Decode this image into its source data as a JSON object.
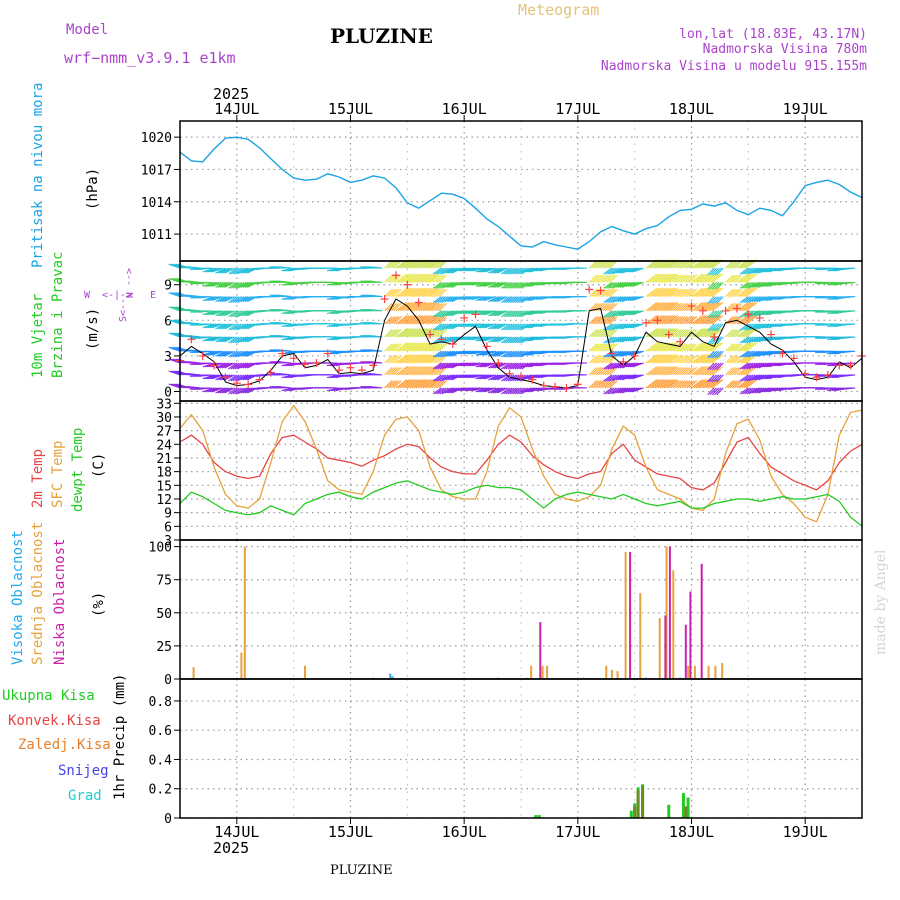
{
  "header": {
    "model_label": "Model",
    "model_name": "wrf−nmm_v3.9.1  e1km",
    "station": "PLUZINE",
    "meteogram": "Meteogram",
    "lonlat": "lon,lat (18.83E, 43.17N)",
    "elevation": "Nadmorska Visina 780m",
    "model_elevation": "Nadmorska Visina u modelu 915.155m",
    "year_top": "2025",
    "footer_station": "PLUZINE",
    "watermark": "made by Angel",
    "year_bottom": "2025"
  },
  "colors": {
    "pressure": "#1aa3e6",
    "temp2m": "#e64444",
    "sfc": "#e6a23c",
    "dewpt": "#22cc22",
    "wind_speed": "#000000",
    "gust": "#ff4040",
    "cloud_high": "#22aaee",
    "cloud_mid": "#e6a23c",
    "cloud_low": "#cc22aa",
    "precip_total": "#22cc22",
    "precip_conv": "#e64444",
    "precip_strat": "#e6822c",
    "snow": "#4444ee",
    "hail": "#22cccc",
    "meteogram_title": "#e6c27a",
    "model_text": "#aa44cc"
  },
  "chart_data": [
    {
      "type": "line",
      "id": "pressure",
      "ylabel": "Pritisak na nivou mora",
      "unit": "(hPa)",
      "yticks": [
        1011,
        1014,
        1017,
        1020
      ],
      "ylim": [
        1008.5,
        1021.5
      ],
      "x_unit": "days from 14JUL 00UTC",
      "x": [
        -0.5,
        -0.4,
        -0.3,
        -0.2,
        -0.1,
        0,
        0.1,
        0.2,
        0.3,
        0.4,
        0.5,
        0.6,
        0.7,
        0.8,
        0.9,
        1,
        1.1,
        1.2,
        1.3,
        1.4,
        1.5,
        1.6,
        1.7,
        1.8,
        1.9,
        2,
        2.1,
        2.2,
        2.3,
        2.4,
        2.5,
        2.6,
        2.7,
        2.8,
        2.9,
        3,
        3.1,
        3.2,
        3.3,
        3.4,
        3.5,
        3.6,
        3.7,
        3.8,
        3.9,
        4,
        4.1,
        4.2,
        4.3,
        4.4,
        4.5,
        4.6,
        4.7,
        4.8,
        4.9,
        5,
        5.1,
        5.2,
        5.3,
        5.4,
        5.5
      ],
      "values": [
        1018.6,
        1017.8,
        1017.7,
        1018.9,
        1019.9,
        1020.0,
        1019.8,
        1019.0,
        1018.0,
        1017.0,
        1016.2,
        1016.0,
        1016.1,
        1016.6,
        1016.3,
        1015.8,
        1016.0,
        1016.4,
        1016.2,
        1015.3,
        1013.9,
        1013.4,
        1014.1,
        1014.8,
        1014.7,
        1014.3,
        1013.4,
        1012.4,
        1011.7,
        1010.8,
        1009.9,
        1009.8,
        1010.3,
        1010.0,
        1009.8,
        1009.6,
        1010.3,
        1011.2,
        1011.7,
        1011.3,
        1011.0,
        1011.5,
        1011.8,
        1012.6,
        1013.2,
        1013.3,
        1013.8,
        1013.6,
        1013.9,
        1013.2,
        1012.8,
        1013.4,
        1013.2,
        1012.7,
        1014.0,
        1015.5,
        1015.8,
        1016.0,
        1015.6,
        1014.9,
        1014.4
      ]
    },
    {
      "type": "line",
      "id": "wind",
      "ylabel": [
        "10m Vjetar",
        "Brzina i Pravac"
      ],
      "unit": "(m/s)",
      "compass": [
        "N",
        "W",
        "E",
        "S"
      ],
      "yticks": [
        0,
        3,
        6,
        9
      ],
      "ylim": [
        -0.8,
        11
      ],
      "x_unit": "days from 14JUL 00UTC",
      "x": [
        -0.5,
        -0.4,
        -0.3,
        -0.2,
        -0.1,
        0,
        0.1,
        0.2,
        0.3,
        0.4,
        0.5,
        0.6,
        0.7,
        0.8,
        0.9,
        1,
        1.1,
        1.2,
        1.3,
        1.4,
        1.5,
        1.6,
        1.7,
        1.8,
        1.9,
        2,
        2.1,
        2.2,
        2.3,
        2.4,
        2.5,
        2.6,
        2.7,
        2.8,
        2.9,
        3,
        3.1,
        3.2,
        3.3,
        3.4,
        3.5,
        3.6,
        3.7,
        3.8,
        3.9,
        4,
        4.1,
        4.2,
        4.3,
        4.4,
        4.5,
        4.6,
        4.7,
        4.8,
        4.9,
        5,
        5.1,
        5.2,
        5.3,
        5.4,
        5.5
      ],
      "speed": [
        3.0,
        3.8,
        3.2,
        2.5,
        0.8,
        0.5,
        0.6,
        0.9,
        1.8,
        3.0,
        3.2,
        2.0,
        2.2,
        2.7,
        1.5,
        1.6,
        1.5,
        1.8,
        6.0,
        7.8,
        7.2,
        6.0,
        4.0,
        4.2,
        4.0,
        4.8,
        5.5,
        3.5,
        2.0,
        1.2,
        1.0,
        0.8,
        0.5,
        0.4,
        0.3,
        0.5,
        6.8,
        7.0,
        3.0,
        2.2,
        3.0,
        5.0,
        4.2,
        4.0,
        3.8,
        5.0,
        4.2,
        3.8,
        5.8,
        6.0,
        5.5,
        5.0,
        4.0,
        3.5,
        2.5,
        1.2,
        1.0,
        1.2,
        2.5,
        2.0,
        2.8
      ],
      "gust": [
        2.6,
        4.4,
        3.0,
        2.2,
        1.2,
        0.7,
        0.6,
        1.0,
        1.6,
        3.2,
        2.8,
        2.3,
        2.4,
        3.2,
        1.8,
        2.0,
        1.8,
        2.2,
        7.8,
        9.8,
        9.0,
        7.5,
        4.8,
        4.4,
        4.0,
        6.2,
        6.5,
        3.8,
        2.4,
        1.5,
        1.3,
        1.0,
        0.5,
        0.4,
        0.3,
        0.6,
        8.6,
        8.5,
        3.2,
        2.5,
        3.0,
        5.8,
        6.0,
        4.8,
        4.2,
        7.2,
        6.8,
        4.6,
        6.8,
        7.0,
        6.5,
        6.2,
        4.8,
        3.2,
        2.8,
        1.5,
        1.2,
        1.4,
        2.2,
        2.2,
        3.0
      ],
      "direction_deg": [
        60,
        80,
        100,
        120,
        130,
        140,
        130,
        100,
        90,
        80,
        110,
        100,
        90,
        90,
        110,
        100,
        90,
        80,
        200,
        210,
        210,
        210,
        200,
        140,
        130,
        110,
        110,
        120,
        130,
        140,
        140,
        120,
        110,
        100,
        100,
        90,
        200,
        200,
        140,
        130,
        120,
        210,
        210,
        200,
        200,
        210,
        210,
        150,
        200,
        210,
        140,
        130,
        120,
        110,
        100,
        90,
        90,
        100,
        110,
        100,
        90
      ]
    },
    {
      "type": "line",
      "id": "temperature",
      "series_labels": [
        "2m Temp",
        "SFC Temp",
        "dewpt Temp"
      ],
      "unit": "(C)",
      "yticks": [
        3,
        6,
        9,
        12,
        15,
        18,
        21,
        24,
        27,
        30,
        33
      ],
      "ylim": [
        3,
        33.5
      ],
      "x_unit": "days from 14JUL 00UTC",
      "x": [
        -0.5,
        -0.4,
        -0.3,
        -0.2,
        -0.1,
        0,
        0.1,
        0.2,
        0.3,
        0.4,
        0.5,
        0.6,
        0.7,
        0.8,
        0.9,
        1,
        1.1,
        1.2,
        1.3,
        1.4,
        1.5,
        1.6,
        1.7,
        1.8,
        1.9,
        2,
        2.1,
        2.2,
        2.3,
        2.4,
        2.5,
        2.6,
        2.7,
        2.8,
        2.9,
        3,
        3.1,
        3.2,
        3.3,
        3.4,
        3.5,
        3.6,
        3.7,
        3.8,
        3.9,
        4,
        4.1,
        4.2,
        4.3,
        4.4,
        4.5,
        4.6,
        4.7,
        4.8,
        4.9,
        5,
        5.1,
        5.2,
        5.3,
        5.4,
        5.5
      ],
      "series": [
        {
          "name": "2m Temp",
          "values": [
            24.5,
            26.0,
            24.0,
            20.0,
            18.0,
            17.0,
            16.5,
            17.0,
            22.0,
            25.5,
            26.0,
            24.5,
            23.0,
            21.0,
            20.5,
            20.0,
            19.2,
            20.5,
            21.5,
            23.0,
            24.0,
            23.5,
            21.0,
            19.0,
            18.0,
            17.5,
            17.5,
            20.5,
            24.0,
            26.0,
            24.5,
            21.5,
            19.5,
            18.0,
            17.0,
            16.5,
            17.5,
            18.0,
            22.0,
            24.0,
            20.5,
            19.0,
            17.5,
            17.0,
            16.5,
            14.5,
            14.0,
            15.5,
            20.0,
            24.5,
            25.5,
            22.0,
            19.0,
            17.5,
            16.0,
            15.0,
            14.0,
            16.0,
            20.0,
            22.5,
            24.0
          ]
        },
        {
          "name": "SFC Temp",
          "values": [
            27.5,
            30.5,
            27.0,
            19.0,
            13.0,
            10.5,
            10.0,
            12.0,
            20.0,
            29.0,
            32.5,
            29.0,
            23.0,
            16.0,
            14.0,
            13.5,
            13.0,
            18.0,
            26.0,
            29.5,
            30.0,
            27.0,
            19.0,
            14.0,
            12.5,
            12.0,
            12.0,
            18.0,
            28.0,
            32.0,
            30.0,
            23.0,
            17.0,
            13.0,
            12.0,
            11.5,
            12.5,
            15.0,
            23.0,
            28.0,
            26.0,
            19.0,
            14.0,
            13.0,
            12.0,
            10.0,
            9.5,
            12.0,
            22.0,
            28.5,
            29.5,
            25.0,
            17.0,
            13.0,
            11.0,
            8.0,
            7.0,
            13.0,
            26.0,
            31.0,
            31.5
          ]
        },
        {
          "name": "dewpt Temp",
          "values": [
            11.0,
            13.5,
            12.5,
            11.0,
            9.5,
            9.0,
            8.5,
            9.0,
            10.5,
            9.5,
            8.5,
            11.0,
            12.0,
            13.0,
            13.5,
            12.5,
            12.0,
            13.5,
            14.5,
            15.5,
            16.0,
            15.0,
            14.0,
            13.5,
            13.0,
            13.5,
            14.5,
            15.0,
            14.5,
            14.5,
            14.0,
            12.0,
            10.0,
            12.0,
            13.0,
            13.5,
            13.0,
            12.5,
            12.0,
            13.0,
            12.0,
            11.0,
            10.5,
            11.0,
            11.5,
            10.0,
            10.0,
            11.0,
            11.5,
            12.0,
            12.0,
            11.5,
            12.0,
            12.5,
            12.0,
            12.0,
            12.5,
            13.0,
            11.5,
            8.0,
            6.0
          ]
        }
      ]
    },
    {
      "type": "bar",
      "id": "clouds",
      "series_labels": [
        "Visoka Oblacnost",
        "Srednja Oblacnost",
        "Niska Oblacnost"
      ],
      "unit": "(%)",
      "yticks": [
        0,
        25,
        50,
        75,
        100
      ],
      "ylim": [
        0,
        105
      ],
      "x_unit": "days from 14JUL 00UTC",
      "series": [
        {
          "name": "Visoka Oblacnost",
          "x": [
            1.2,
            1.35,
            1.37,
            2.3,
            2.55,
            3.05,
            3.6,
            3.9
          ],
          "values": [
            1,
            4,
            2,
            1,
            1,
            1,
            1,
            1
          ]
        },
        {
          "name": "Srednja Oblacnost",
          "x": [
            -0.38,
            0.04,
            0.07,
            0.6,
            2.59,
            2.69,
            2.73,
            3.25,
            3.3,
            3.35,
            3.42,
            3.55,
            3.72,
            3.78,
            3.84,
            3.97,
            4.03,
            4.15,
            4.21,
            4.27
          ],
          "values": [
            9,
            20,
            100,
            10,
            10,
            10,
            10,
            10,
            7,
            6,
            96,
            65,
            46,
            100,
            82,
            10,
            10,
            10,
            10,
            12
          ]
        },
        {
          "name": "Niska Oblacnost",
          "x": [
            2.67,
            3.46,
            3.77,
            3.81,
            3.95,
            3.99,
            4.09
          ],
          "values": [
            43,
            96,
            48,
            100,
            41,
            66,
            87
          ]
        }
      ]
    },
    {
      "type": "bar",
      "id": "precip",
      "series_labels": [
        "Ukupna  Kisa",
        "Konvek.Kisa",
        "Zaledj.Kisa",
        "Snijeg",
        "Grad"
      ],
      "ylabel": "1hr Precip (mm)",
      "yticks": [
        0,
        0.2,
        0.4,
        0.6,
        0.8
      ],
      "ylim": [
        0,
        0.95
      ],
      "x_unit": "days from 14JUL 00UTC",
      "series": [
        {
          "name": "Ukupna  Kisa",
          "x": [
            2.63,
            2.66,
            3.47,
            3.5,
            3.53,
            3.57,
            3.8,
            3.93,
            3.97
          ],
          "values": [
            0.02,
            0.02,
            0.05,
            0.1,
            0.21,
            0.23,
            0.09,
            0.17,
            0.14
          ]
        },
        {
          "name": "Konvek.Kisa",
          "x": [],
          "values": []
        },
        {
          "name": "Zaledj.Kisa",
          "x": [
            3.5,
            3.53,
            3.57,
            3.95
          ],
          "values": [
            0.08,
            0.19,
            0.22,
            0.08
          ]
        },
        {
          "name": "Snijeg",
          "x": [],
          "values": []
        },
        {
          "name": "Grad",
          "x": [],
          "values": []
        }
      ]
    }
  ],
  "days": [
    "14JUL",
    "15JUL",
    "16JUL",
    "17JUL",
    "18JUL",
    "19JUL"
  ],
  "x_range": [
    -0.5,
    5.5
  ]
}
